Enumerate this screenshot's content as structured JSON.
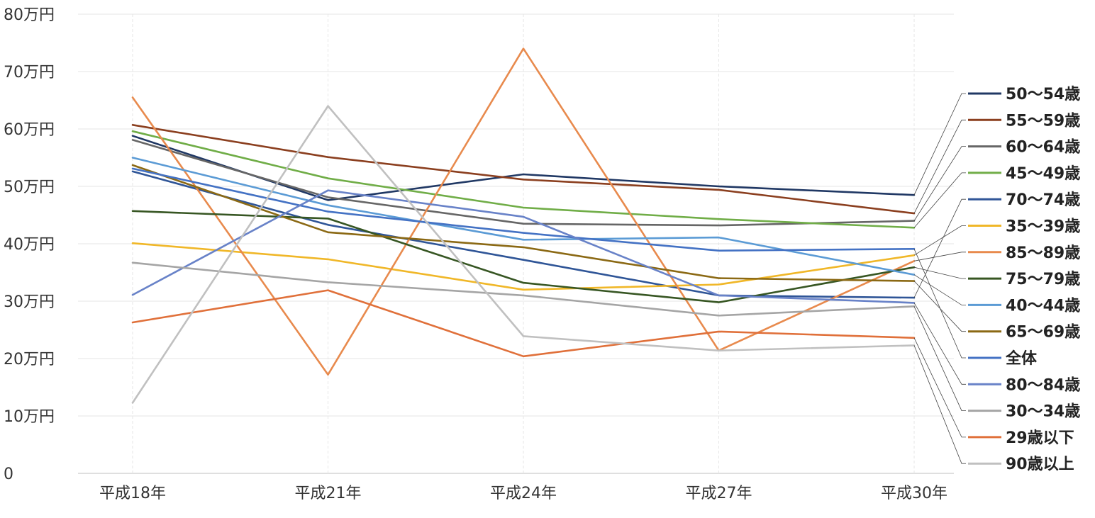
{
  "chart_data": {
    "type": "line",
    "title": "",
    "xlabel": "",
    "ylabel": "",
    "categories": [
      "平成18年",
      "平成21年",
      "平成24年",
      "平成27年",
      "平成30年"
    ],
    "y_tick_labels": [
      "0",
      "10万円",
      "20万円",
      "30万円",
      "40万円",
      "50万円",
      "60万円",
      "70万円",
      "80万円"
    ],
    "ylim": [
      0,
      80
    ],
    "grid": "horizontal and vertical, light",
    "legend_position": "right",
    "series": [
      {
        "name": "50～54歳",
        "color": "#203864",
        "values": [
          58.8,
          47.6,
          52.1,
          50.0,
          48.5
        ]
      },
      {
        "name": "55～59歳",
        "color": "#8B3F1F",
        "values": [
          60.7,
          55.1,
          51.2,
          49.4,
          45.3
        ]
      },
      {
        "name": "60～64歳",
        "color": "#666666",
        "values": [
          58.1,
          48.1,
          43.5,
          43.2,
          44.0
        ]
      },
      {
        "name": "45～49歳",
        "color": "#70AD47",
        "values": [
          59.6,
          51.4,
          46.3,
          44.3,
          42.8
        ]
      },
      {
        "name": "70～74歳",
        "color": "#2F5597",
        "values": [
          52.6,
          43.3,
          37.2,
          31.0,
          30.6
        ]
      },
      {
        "name": "35～39歳",
        "color": "#F0B728",
        "values": [
          40.1,
          37.3,
          32.0,
          32.9,
          38.0
        ]
      },
      {
        "name": "85～89歳",
        "color": "#E88A4D",
        "values": [
          65.5,
          17.2,
          74.0,
          21.4,
          37.0
        ]
      },
      {
        "name": "75～79歳",
        "color": "#375623",
        "values": [
          45.7,
          44.4,
          33.2,
          29.8,
          35.9
        ]
      },
      {
        "name": "40～44歳",
        "color": "#5B9BD5",
        "values": [
          55.0,
          46.7,
          40.7,
          41.1,
          34.6
        ]
      },
      {
        "name": "65～69歳",
        "color": "#8B6914",
        "values": [
          53.7,
          42.0,
          39.4,
          34.0,
          33.5
        ]
      },
      {
        "name": "全体",
        "color": "#4472C4",
        "values": [
          53.1,
          45.6,
          41.9,
          38.8,
          39.1
        ]
      },
      {
        "name": "80～84歳",
        "color": "#6882C8",
        "values": [
          31.1,
          49.3,
          44.7,
          31.0,
          29.7
        ]
      },
      {
        "name": "30～34歳",
        "color": "#A5A5A5",
        "values": [
          36.7,
          33.3,
          31.0,
          27.5,
          29.1
        ]
      },
      {
        "name": "29歳以下",
        "color": "#E0703A",
        "values": [
          26.3,
          31.9,
          20.4,
          24.7,
          23.6
        ]
      },
      {
        "name": "90歳以上",
        "color": "#C0C0C0",
        "values": [
          12.3,
          64.0,
          23.9,
          21.4,
          22.3
        ]
      }
    ]
  }
}
